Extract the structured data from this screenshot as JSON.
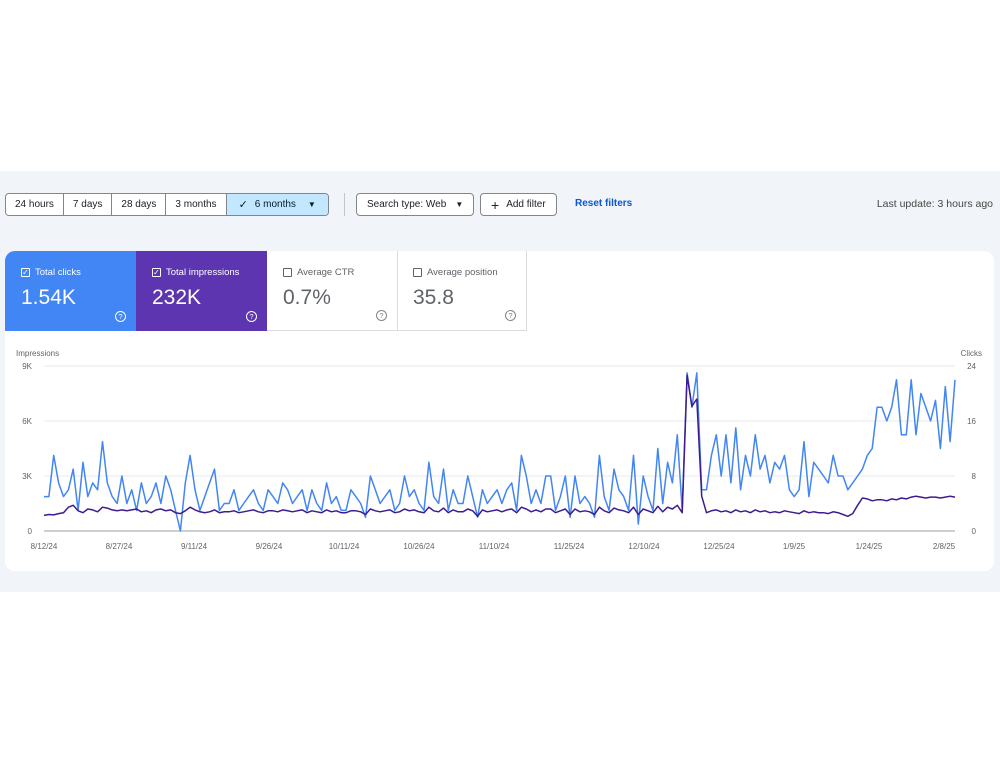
{
  "date_range": {
    "options": [
      "24 hours",
      "7 days",
      "28 days",
      "3 months"
    ],
    "selected": "6 months"
  },
  "search_type": {
    "label": "Search type: Web"
  },
  "add_filter": {
    "label": "Add filter"
  },
  "reset_filters": {
    "label": "Reset filters"
  },
  "last_update": "Last update: 3 hours ago",
  "metrics": [
    {
      "label": "Total clicks",
      "value": "1.54K",
      "checked": true,
      "color": "#4285f4"
    },
    {
      "label": "Total impressions",
      "value": "232K",
      "checked": true,
      "color": "#5e35b1"
    },
    {
      "label": "Average CTR",
      "value": "0.7%",
      "checked": false
    },
    {
      "label": "Average position",
      "value": "35.8",
      "checked": false
    }
  ],
  "chart_data": {
    "type": "line",
    "left_axis": {
      "label": "Impressions",
      "ticks": [
        "0",
        "3K",
        "6K",
        "9K"
      ],
      "range": [
        0,
        9000
      ]
    },
    "right_axis": {
      "label": "Clicks",
      "ticks": [
        "0",
        "8",
        "16",
        "24"
      ],
      "range": [
        0,
        24
      ]
    },
    "x_tick_labels": [
      "8/12/24",
      "8/27/24",
      "9/11/24",
      "9/26/24",
      "10/11/24",
      "10/26/24",
      "11/10/24",
      "11/25/24",
      "12/10/24",
      "12/25/24",
      "1/9/25",
      "1/24/25",
      "2/8/25"
    ],
    "x_start": "8/12/24",
    "x_end": "2/11/25",
    "grid": true,
    "series": [
      {
        "name": "Clicks",
        "axis": "right",
        "color": "#4285f4",
        "values": [
          5,
          5,
          11,
          7,
          5,
          6,
          9,
          3,
          10,
          5,
          7,
          6,
          13,
          7,
          5,
          4,
          8,
          4,
          6,
          3,
          7,
          4,
          5,
          7,
          4,
          8,
          6,
          3,
          0,
          7,
          11,
          6,
          3,
          5,
          7,
          9,
          3,
          4,
          4,
          6,
          3,
          4,
          5,
          6,
          4,
          3,
          6,
          5,
          4,
          7,
          6,
          4,
          5,
          6,
          3,
          6,
          4,
          3,
          7,
          4,
          5,
          3,
          3,
          6,
          5,
          4,
          2,
          8,
          6,
          4,
          5,
          6,
          3,
          4,
          8,
          5,
          6,
          4,
          3,
          10,
          5,
          4,
          9,
          3,
          6,
          4,
          4,
          8,
          5,
          2,
          6,
          4,
          5,
          6,
          4,
          6,
          7,
          3,
          11,
          8,
          4,
          6,
          4,
          8,
          8,
          3,
          5,
          8,
          2,
          8,
          4,
          5,
          4,
          2,
          11,
          5,
          3,
          9,
          6,
          5,
          3,
          11,
          1,
          8,
          5,
          3,
          12,
          4,
          10,
          7,
          14,
          3,
          23,
          18,
          23,
          6,
          6,
          11,
          14,
          8,
          14,
          7,
          15,
          6,
          11,
          8,
          14,
          9,
          11,
          7,
          10,
          9,
          11,
          6,
          5,
          6,
          13,
          5,
          10,
          9,
          8,
          7,
          11,
          8,
          8,
          6,
          7,
          8,
          9,
          11,
          12,
          18,
          18,
          16,
          18,
          22,
          14,
          14,
          22,
          14,
          20,
          18,
          16,
          19,
          12,
          21,
          13,
          22
        ]
      },
      {
        "name": "Impressions",
        "axis": "left",
        "color": "#3d1c8f",
        "values": [
          850,
          900,
          880,
          950,
          1000,
          1300,
          1400,
          1100,
          1000,
          1200,
          1150,
          1050,
          1300,
          1250,
          1150,
          1100,
          1150,
          1100,
          1150,
          1200,
          1050,
          1100,
          1000,
          1150,
          1200,
          1100,
          1150,
          1000,
          950,
          1100,
          1300,
          1150,
          1050,
          1000,
          1050,
          1150,
          1000,
          1050,
          1050,
          1100,
          1000,
          1050,
          1100,
          1150,
          1050,
          1000,
          1100,
          1100,
          1050,
          1150,
          1100,
          1050,
          1100,
          1150,
          1000,
          1100,
          1050,
          1000,
          1150,
          1050,
          1100,
          1000,
          1000,
          1100,
          1100,
          1050,
          900,
          1200,
          1100,
          1050,
          1100,
          1150,
          1000,
          1050,
          1200,
          1100,
          1150,
          1050,
          1000,
          1300,
          1100,
          1050,
          1250,
          1000,
          1150,
          1050,
          1050,
          1200,
          1100,
          800,
          1150,
          1050,
          1100,
          1150,
          1050,
          1150,
          1200,
          1000,
          1300,
          1200,
          1050,
          1150,
          1050,
          1200,
          1200,
          1000,
          1100,
          1200,
          900,
          1200,
          1050,
          1100,
          1050,
          900,
          1300,
          1100,
          1000,
          1250,
          1150,
          1100,
          1000,
          1300,
          900,
          1200,
          1100,
          1000,
          1350,
          1050,
          1300,
          1200,
          1400,
          1000,
          8500,
          6800,
          7200,
          1900,
          1000,
          1100,
          1150,
          1050,
          1100,
          1000,
          1150,
          1050,
          1100,
          1000,
          1150,
          1050,
          1100,
          1000,
          1050,
          1000,
          1100,
          1050,
          1000,
          950,
          1100,
          1000,
          1050,
          1000,
          1000,
          950,
          1050,
          1000,
          900,
          800,
          950,
          1400,
          1800,
          1750,
          1650,
          1700,
          1700,
          1650,
          1750,
          1700,
          1800,
          1750,
          1850,
          1900,
          1850,
          1800,
          1850,
          1850,
          1800,
          1850,
          1900,
          1850
        ]
      }
    ]
  }
}
